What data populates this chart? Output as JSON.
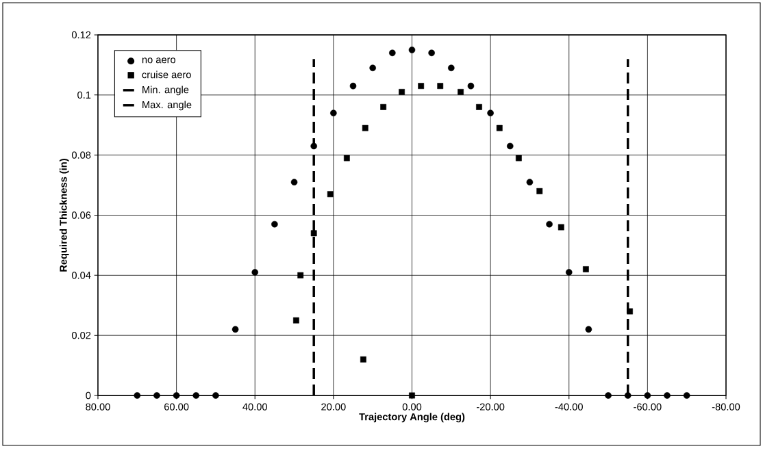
{
  "chart_data": {
    "type": "scatter",
    "xlabel": "Trajectory Angle (deg)",
    "ylabel": "Required Thickness (in)",
    "xlim": [
      80,
      -80
    ],
    "ylim": [
      0,
      0.12
    ],
    "xticks": [
      {
        "value": 80,
        "label": "80.00"
      },
      {
        "value": 60,
        "label": "60.00"
      },
      {
        "value": 40,
        "label": "40.00"
      },
      {
        "value": 20,
        "label": "20.00"
      },
      {
        "value": 0,
        "label": "0.00"
      },
      {
        "value": -20,
        "label": "-20.00"
      },
      {
        "value": -40,
        "label": "-40.00"
      },
      {
        "value": -60,
        "label": "-60.00"
      },
      {
        "value": -80,
        "label": "-80.00"
      }
    ],
    "yticks": [
      0,
      0.02,
      0.04,
      0.06,
      0.08,
      0.1,
      0.12
    ],
    "grid": true,
    "legend": "top left",
    "series": [
      {
        "name": "no aero",
        "color": "#000000",
        "marker": "circle",
        "x": [
          70,
          65,
          60,
          55,
          50,
          45,
          40,
          35,
          30,
          25,
          20,
          15,
          10,
          5,
          0,
          -5,
          -10,
          -15,
          -20,
          -25,
          -30,
          -35,
          -40,
          -45,
          -50,
          -55,
          -60,
          -65,
          -70
        ],
        "values": [
          0,
          0,
          0,
          0,
          0,
          0.022,
          0.041,
          0.057,
          0.071,
          0.083,
          0.094,
          0.103,
          0.109,
          0.114,
          0.115,
          0.114,
          0.109,
          0.103,
          0.094,
          0.083,
          0.071,
          0.057,
          0.041,
          0.022,
          0,
          0,
          0,
          0,
          0
        ]
      },
      {
        "name": "cruise aero",
        "color": "#000000",
        "marker": "square",
        "x": [
          0,
          12.4,
          29.5,
          28.4,
          25,
          20.8,
          16.6,
          11.9,
          7.3,
          2.6,
          -2.3,
          -7.2,
          -12.4,
          -17.1,
          -22.3,
          -27.2,
          -32.5,
          -38,
          -44.3,
          -55.5
        ],
        "values": [
          0,
          0.012,
          0.025,
          0.04,
          0.054,
          0.067,
          0.079,
          0.089,
          0.096,
          0.101,
          0.103,
          0.103,
          0.101,
          0.096,
          0.089,
          0.079,
          0.068,
          0.056,
          0.042,
          0.028
        ]
      },
      {
        "name": "Min. angle",
        "type": "line",
        "line_style": "dashed",
        "color": "#000000",
        "x": [
          25,
          25
        ],
        "values": [
          0,
          0.112
        ]
      },
      {
        "name": "Max. angle",
        "type": "line",
        "line_style": "dashed",
        "color": "#000000",
        "x": [
          -55,
          -55
        ],
        "values": [
          0,
          0.112
        ]
      }
    ]
  }
}
